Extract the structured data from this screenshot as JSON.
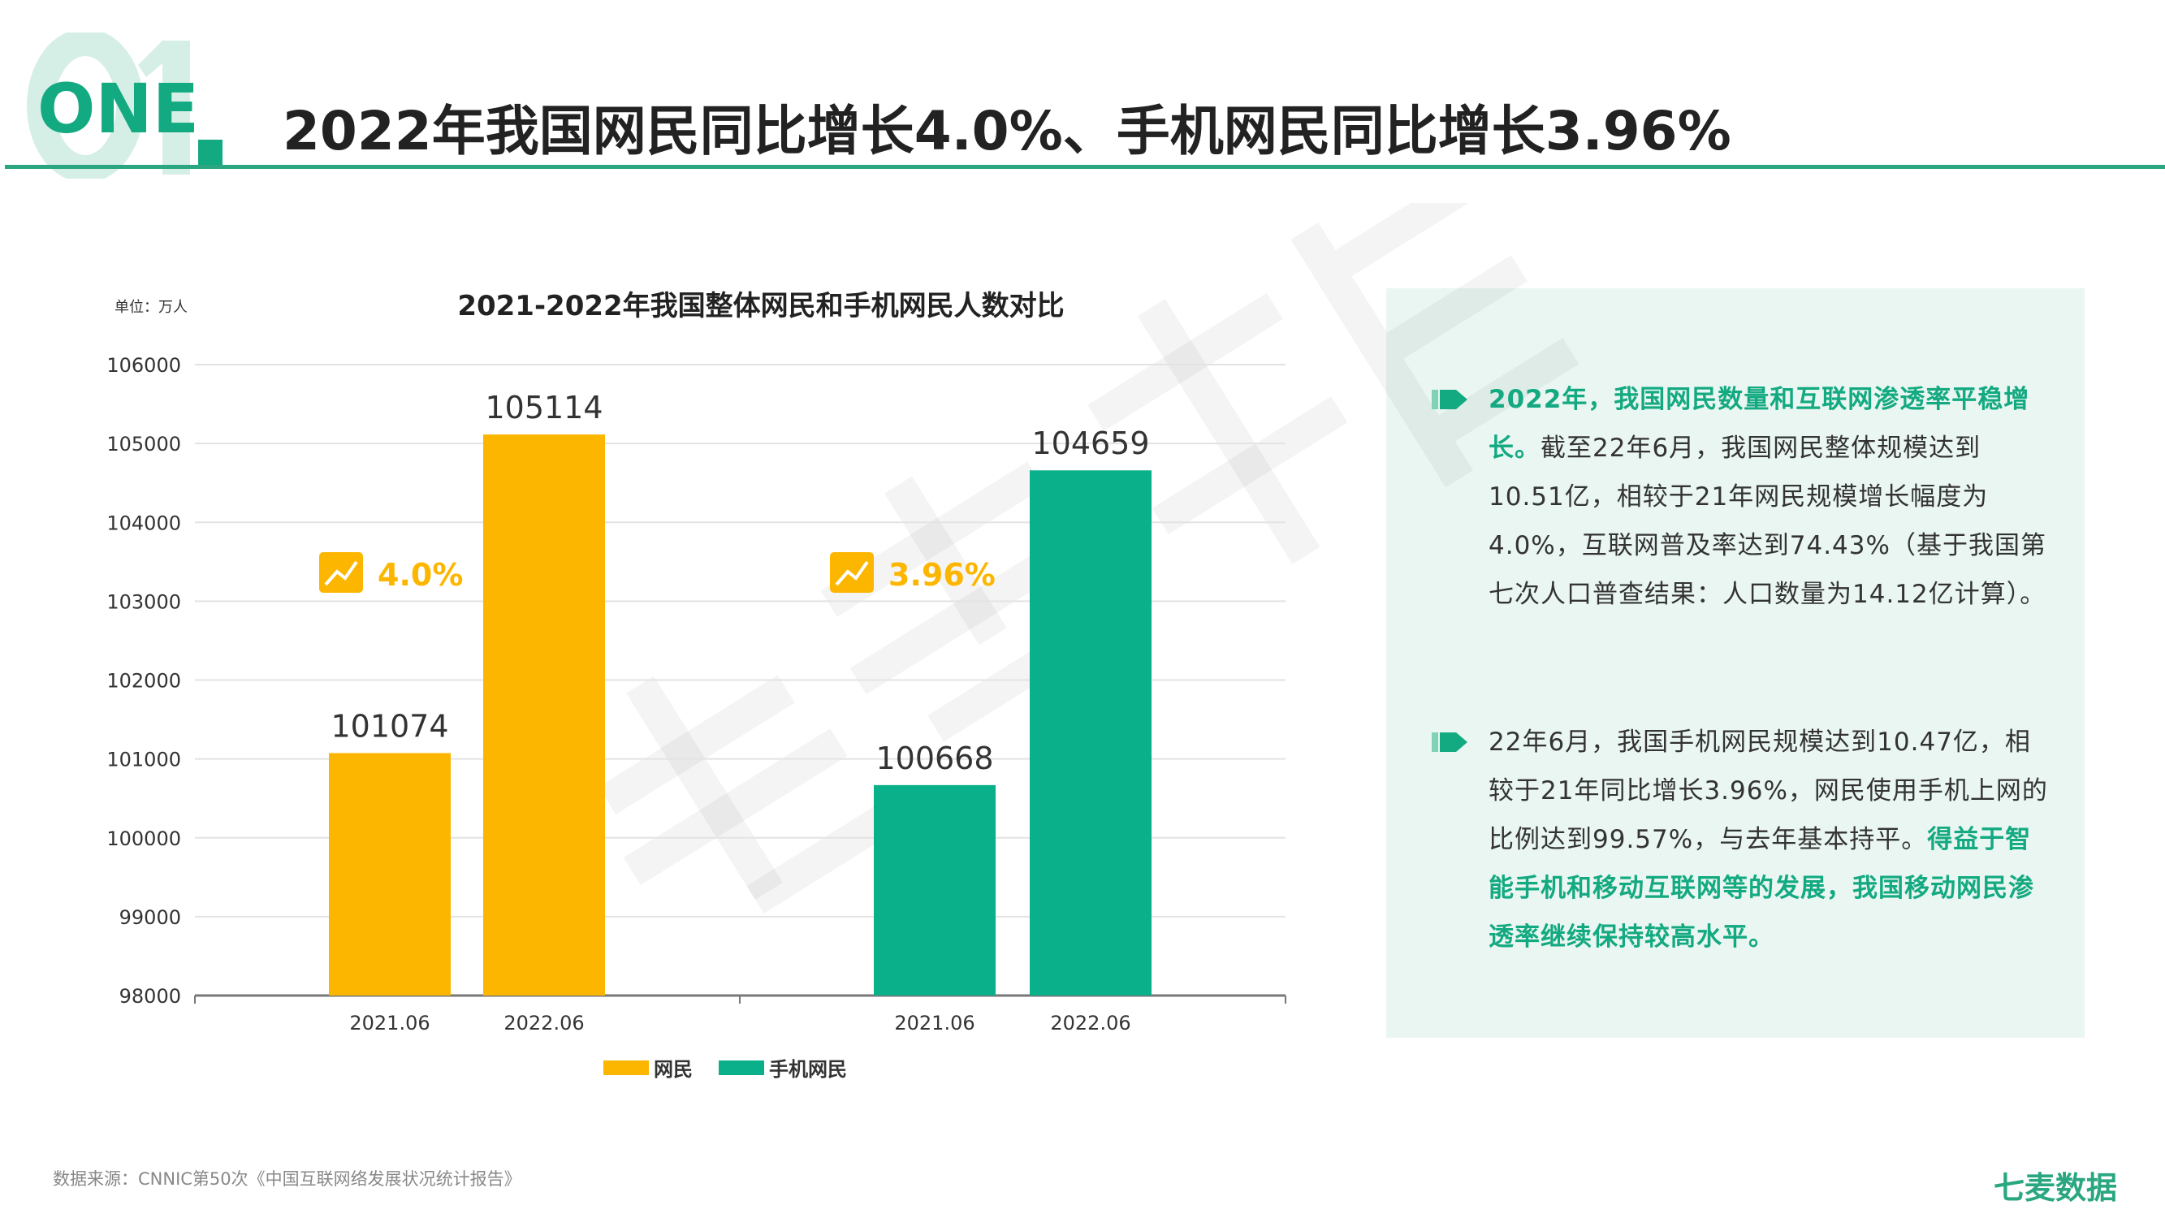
{
  "header": {
    "ghost_number": "01",
    "section_label": "ONE",
    "title": "2022年我国网民同比增长4.0%、手机网民同比增长3.96%",
    "accent": "#2aa680"
  },
  "watermark": "七麦数据",
  "chart_data": {
    "type": "bar",
    "title": "2021-2022年我国整体网民和手机网民人数对比",
    "unit_label": "单位：万人",
    "ylim": [
      98000,
      106000
    ],
    "yticks": [
      106000,
      105000,
      104000,
      103000,
      102000,
      101000,
      100000,
      99000,
      98000
    ],
    "grid": true,
    "legend_position": "bottom",
    "groups": [
      {
        "series": "网民",
        "color": "#FDB600",
        "categories": [
          "2021.06",
          "2022.06"
        ],
        "values": [
          101074,
          105114
        ],
        "growth": "4.0%"
      },
      {
        "series": "手机网民",
        "color": "#0AB08A",
        "categories": [
          "2021.06",
          "2022.06"
        ],
        "values": [
          100668,
          104659
        ],
        "growth": "3.96%"
      }
    ],
    "legend": [
      {
        "name": "网民",
        "color": "#FDB600"
      },
      {
        "name": "手机网民",
        "color": "#0AB08A"
      }
    ]
  },
  "panel": {
    "p1": {
      "highlight": "2022年，我国网民数量和互联网渗透率平稳增长。",
      "text": "截至22年6月，我国网民整体规模达到10.51亿，相较于21年网民规模增长幅度为4.0%，互联网普及率达到74.43%（基于我国第七次人口普查结果：人口数量为14.12亿计算）。"
    },
    "p2": {
      "text": "22年6月，我国手机网民规模达到10.47亿，相较于21年同比增长3.96%，网民使用手机上网的比例达到99.57%，与去年基本持平。",
      "highlight": "得益于智能手机和移动互联网等的发展，我国移动网民渗透率继续保持较高水平。"
    }
  },
  "footer": {
    "source": "数据来源：CNNIC第50次《中国互联网络发展状况统计报告》",
    "logo": "七麦数据"
  }
}
